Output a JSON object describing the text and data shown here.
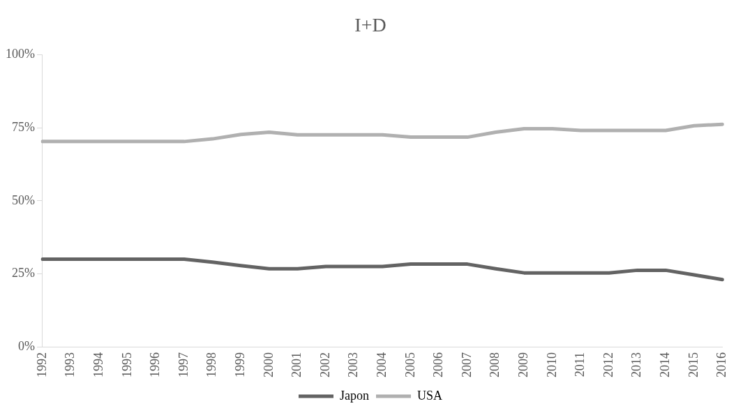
{
  "chart_data": {
    "type": "line",
    "title": "I+D",
    "categories": [
      "1992",
      "1993",
      "1994",
      "1995",
      "1996",
      "1997",
      "1998",
      "1999",
      "2000",
      "2001",
      "2002",
      "2003",
      "2004",
      "2005",
      "2006",
      "2007",
      "2008",
      "2009",
      "2010",
      "2011",
      "2012",
      "2013",
      "2014",
      "2015",
      "2016"
    ],
    "series": [
      {
        "name": "Japon",
        "color": "#636363",
        "values": [
          30,
          30,
          30,
          30,
          30,
          30,
          29,
          27.8,
          26.7,
          26.7,
          27.5,
          27.5,
          27.5,
          28.3,
          28.3,
          28.3,
          26.7,
          25.3,
          25.3,
          25.3,
          25.3,
          26.2,
          26.2,
          24.6,
          23
        ]
      },
      {
        "name": "USA",
        "color": "#b0b0b0",
        "values": [
          70.3,
          70.3,
          70.3,
          70.3,
          70.3,
          70.3,
          71.2,
          72.7,
          73.5,
          72.6,
          72.6,
          72.6,
          72.6,
          71.8,
          71.8,
          71.8,
          73.5,
          74.7,
          74.7,
          74.1,
          74.1,
          74.1,
          74.1,
          75.7,
          76.2
        ]
      }
    ],
    "ylim": [
      0,
      100
    ],
    "yticks": [
      {
        "value": 0,
        "label": "0%"
      },
      {
        "value": 25,
        "label": "25%"
      },
      {
        "value": 50,
        "label": "50%"
      },
      {
        "value": 75,
        "label": "75%"
      },
      {
        "value": 100,
        "label": "100%"
      }
    ],
    "grid": false,
    "legend": "bottom",
    "marker": "none",
    "line_style": "solid"
  }
}
